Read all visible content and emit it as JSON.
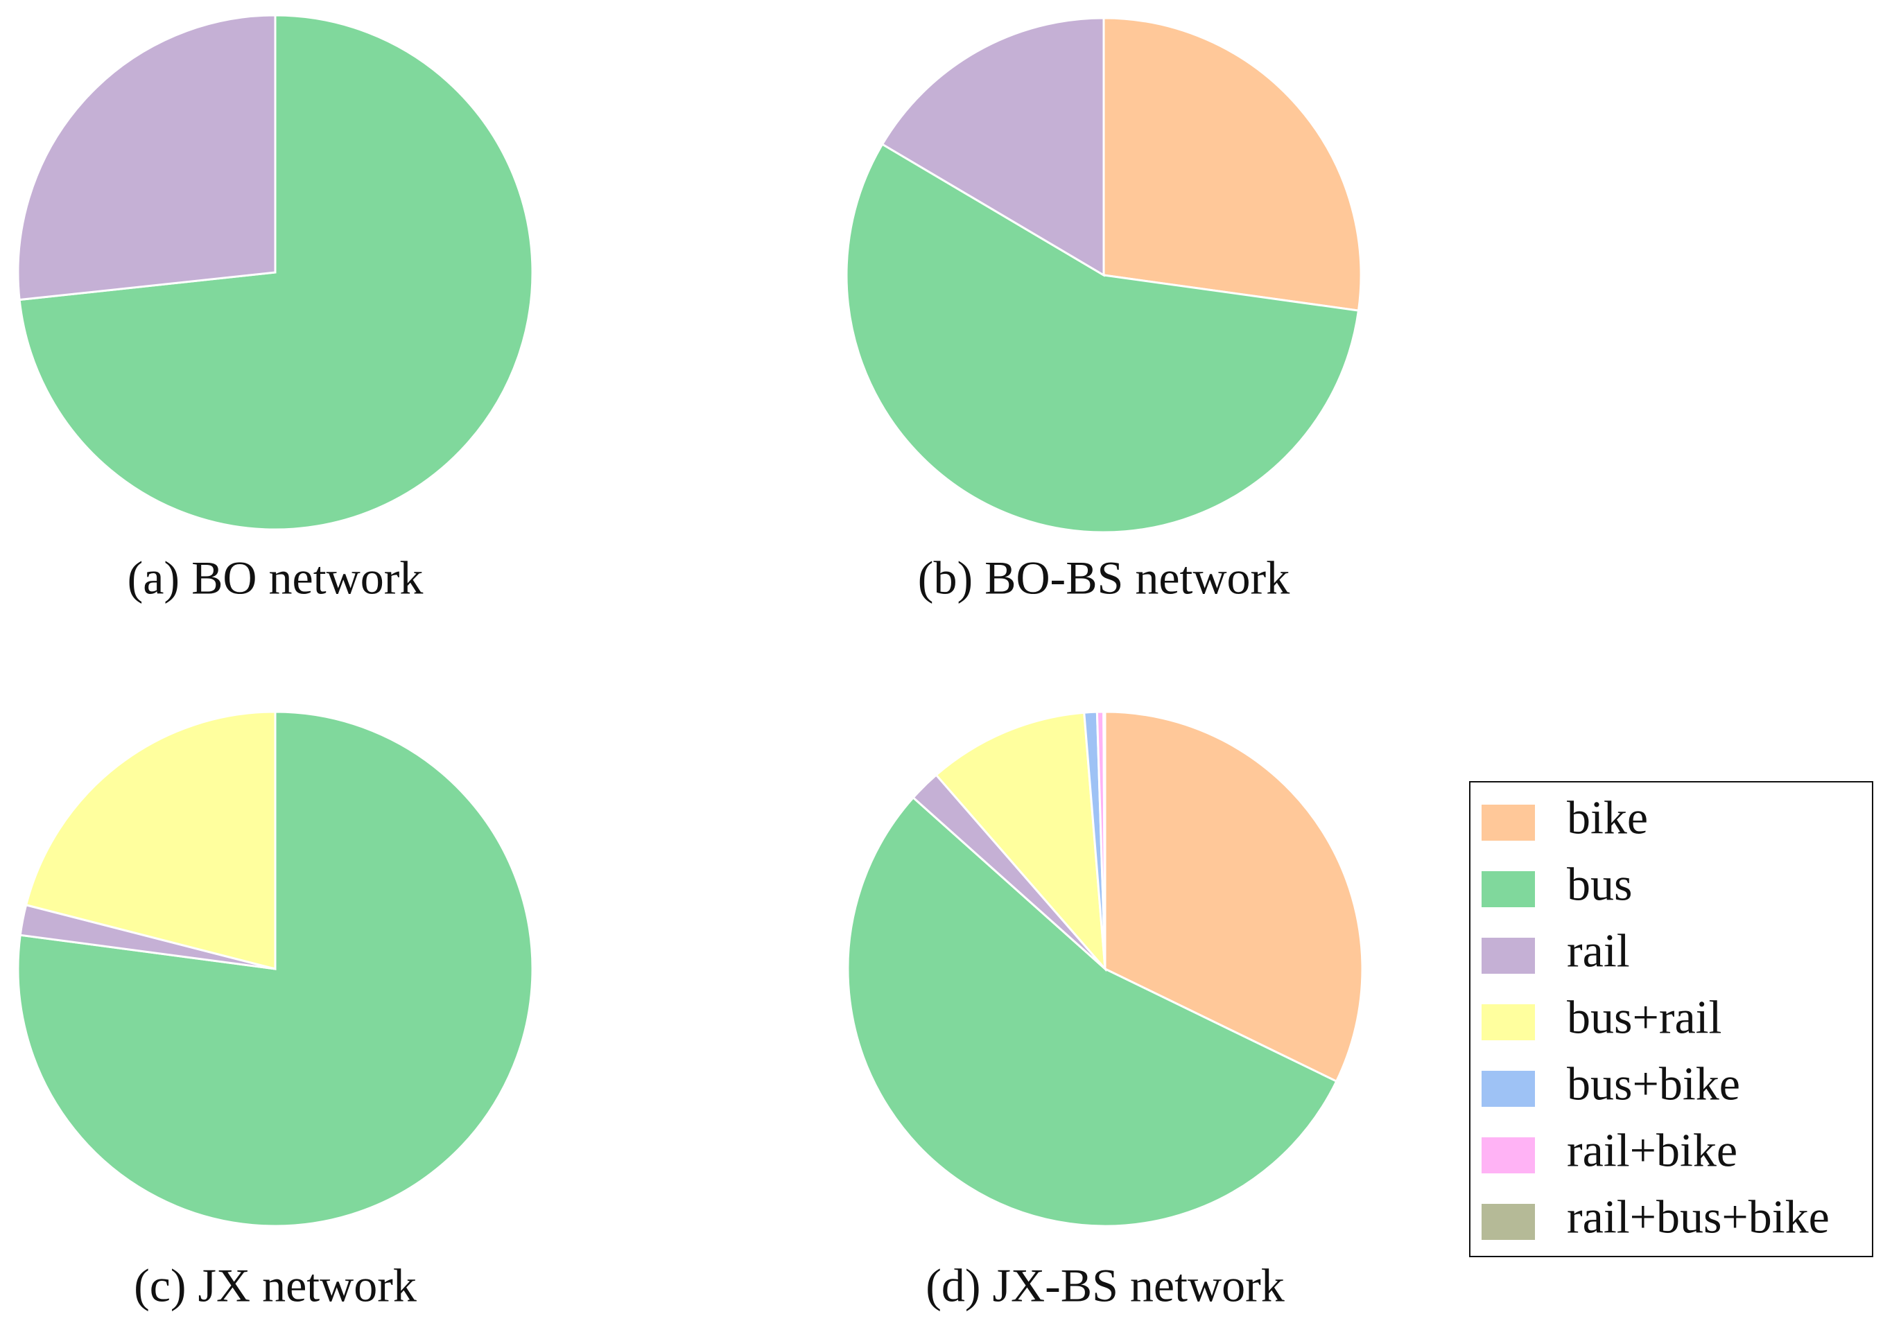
{
  "chart_data": [
    {
      "type": "pie",
      "title": "(a) BO network",
      "categories": [
        "bus",
        "rail"
      ],
      "values": [
        73.3,
        26.7
      ],
      "colors": [
        "#80d89c",
        "#c5b0d5"
      ]
    },
    {
      "type": "pie",
      "title": "(b) BO-BS network",
      "categories": [
        "bike",
        "bus",
        "rail"
      ],
      "values": [
        27.2,
        56.3,
        16.5
      ],
      "colors": [
        "#ffc899",
        "#80d89c",
        "#c5b0d5"
      ]
    },
    {
      "type": "pie",
      "title": "(c) JX network",
      "categories": [
        "bus",
        "rail",
        "bus+rail"
      ],
      "values": [
        77.1,
        1.9,
        21
      ],
      "colors": [
        "#80d89c",
        "#c5b0d5",
        "#ffff9e"
      ]
    },
    {
      "type": "pie",
      "title": "(d) JX-BS network",
      "categories": [
        "bike",
        "bus",
        "rail",
        "bus+rail",
        "bus+bike",
        "rail+bike",
        "rail+bus+bike"
      ],
      "values": [
        32.2,
        54.4,
        2,
        10.1,
        0.8,
        0.4,
        0.1
      ],
      "colors": [
        "#ffc899",
        "#80d89c",
        "#c5b0d5",
        "#ffff9e",
        "#9ec2f5",
        "#ffb3f5",
        "#b5ba97"
      ],
      "legend": "right"
    }
  ]
}
